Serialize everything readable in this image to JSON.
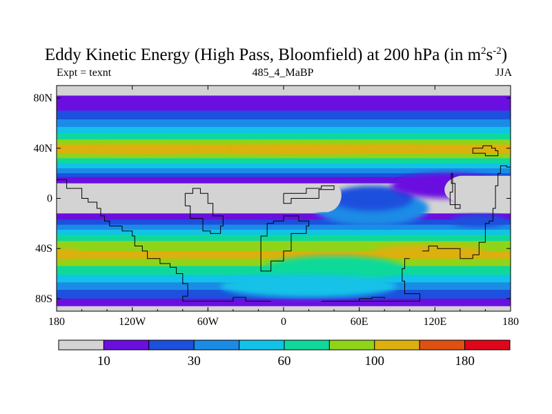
{
  "chart_data": {
    "type": "heatmap",
    "title": "Eddy Kinetic Energy (High Pass, Bloomfield) at 200 hPa (in m",
    "title_units": {
      "unit1": "2",
      "s_label": "s",
      "exp2": "-2",
      "close": ")"
    },
    "center_subtitle": "485_4_MaBP",
    "left_subtitle": "Expt = texnt",
    "right_subtitle": "JJA",
    "x_ticks": [
      {
        "value": -180,
        "label": "180"
      },
      {
        "value": -120,
        "label": "120W"
      },
      {
        "value": -60,
        "label": "60W"
      },
      {
        "value": 0,
        "label": "0"
      },
      {
        "value": 60,
        "label": "60E"
      },
      {
        "value": 120,
        "label": "120E"
      },
      {
        "value": 180,
        "label": "180"
      }
    ],
    "y_ticks": [
      {
        "value": 80,
        "label": "80N"
      },
      {
        "value": 40,
        "label": "40N"
      },
      {
        "value": 0,
        "label": "0"
      },
      {
        "value": -40,
        "label": "40S"
      },
      {
        "value": -80,
        "label": "80S"
      }
    ],
    "xlim": [
      -180,
      180
    ],
    "ylim": [
      -90,
      90
    ],
    "colorbar": {
      "colors": [
        "#d3d3d3",
        "#6a0fe0",
        "#1c50dd",
        "#1a8ce6",
        "#12c2e8",
        "#0fd99a",
        "#90d41a",
        "#dcb00e",
        "#de5112",
        "#e0061a"
      ],
      "labels": [
        {
          "index": 1,
          "text": "10"
        },
        {
          "index": 3,
          "text": "30"
        },
        {
          "index": 5,
          "text": "60"
        },
        {
          "index": 7,
          "text": "100"
        },
        {
          "index": 9,
          "text": "180"
        }
      ]
    },
    "zonal_bands": [
      {
        "lat_top": 90,
        "lat_bottom": 82,
        "level": 0
      },
      {
        "lat_top": 82,
        "lat_bottom": 70,
        "level": 1
      },
      {
        "lat_top": 70,
        "lat_bottom": 63,
        "level": 2
      },
      {
        "lat_top": 63,
        "lat_bottom": 57,
        "level": 3
      },
      {
        "lat_top": 57,
        "lat_bottom": 52,
        "level": 4
      },
      {
        "lat_top": 52,
        "lat_bottom": 47,
        "level": 5
      },
      {
        "lat_top": 47,
        "lat_bottom": 43,
        "level": 6
      },
      {
        "lat_top": 43,
        "lat_bottom": 36,
        "level": 7
      },
      {
        "lat_top": 36,
        "lat_bottom": 32,
        "level": 6
      },
      {
        "lat_top": 32,
        "lat_bottom": 28,
        "level": 5
      },
      {
        "lat_top": 28,
        "lat_bottom": 24,
        "level": 4
      },
      {
        "lat_top": 24,
        "lat_bottom": 20,
        "level": 3
      },
      {
        "lat_top": 20,
        "lat_bottom": 17,
        "level": 2
      },
      {
        "lat_top": 17,
        "lat_bottom": 12,
        "level": 1
      },
      {
        "lat_top": 12,
        "lat_bottom": -12,
        "level": 0
      },
      {
        "lat_top": -12,
        "lat_bottom": -17,
        "level": 1
      },
      {
        "lat_top": -17,
        "lat_bottom": -21,
        "level": 2
      },
      {
        "lat_top": -21,
        "lat_bottom": -25,
        "level": 3
      },
      {
        "lat_top": -25,
        "lat_bottom": -29,
        "level": 4
      },
      {
        "lat_top": -29,
        "lat_bottom": -34,
        "level": 5
      },
      {
        "lat_top": -34,
        "lat_bottom": -42,
        "level": 6
      },
      {
        "lat_top": -42,
        "lat_bottom": -48,
        "level": 7
      },
      {
        "lat_top": -48,
        "lat_bottom": -54,
        "level": 6
      },
      {
        "lat_top": -54,
        "lat_bottom": -61,
        "level": 5
      },
      {
        "lat_top": -61,
        "lat_bottom": -67,
        "level": 4
      },
      {
        "lat_top": -67,
        "lat_bottom": -73,
        "level": 3
      },
      {
        "lat_top": -73,
        "lat_bottom": -80,
        "level": 2
      },
      {
        "lat_top": -80,
        "lat_bottom": -86,
        "level": 1
      },
      {
        "lat_top": -86,
        "lat_bottom": -90,
        "level": 0
      }
    ],
    "regions": [
      {
        "label": "NH storm track max (Pacific)",
        "level": 7,
        "center": [
          -112,
          39
        ],
        "radius": [
          45,
          3.5
        ]
      },
      {
        "label": "NH storm track max (Atlantic)",
        "level": 7,
        "center": [
          10,
          39
        ],
        "radius": [
          55,
          3.5
        ]
      },
      {
        "label": "NH storm track max (Asia)",
        "level": 7,
        "center": [
          85,
          40
        ],
        "radius": [
          25,
          3
        ]
      },
      {
        "label": "SH jet max west",
        "level": 7,
        "center": [
          -172,
          -44
        ],
        "radius": [
          10,
          4
        ]
      },
      {
        "label": "SH jet max Indian Ocean",
        "level": 7,
        "center": [
          115,
          -42
        ],
        "radius": [
          45,
          5
        ]
      },
      {
        "label": "Indian Ocean tongue",
        "level": 3,
        "center": [
          70,
          -8
        ],
        "radius": [
          45,
          14
        ]
      },
      {
        "label": "Indian Ocean core",
        "level": 2,
        "center": [
          70,
          0
        ],
        "radius": [
          33,
          10
        ]
      },
      {
        "label": "Western Pacific tongue",
        "level": 1,
        "center": [
          130,
          10
        ],
        "radius": [
          45,
          10
        ]
      },
      {
        "label": "Mid-latitude reduction",
        "level": 5,
        "center": [
          40,
          -56
        ],
        "radius": [
          55,
          10
        ]
      },
      {
        "label": "Southern cyan region",
        "level": 4,
        "center": [
          20,
          -70
        ],
        "radius": [
          70,
          9
        ]
      },
      {
        "label": "Pacific low band",
        "level": 2,
        "center": [
          155,
          -18
        ],
        "radius": [
          22,
          5
        ]
      }
    ],
    "land_boundaries": [
      {
        "name": "continent-a",
        "points": [
          [
            -180,
            15
          ],
          [
            -172,
            15
          ],
          [
            -172,
            8
          ],
          [
            -160,
            8
          ],
          [
            -160,
            0
          ],
          [
            -155,
            -3
          ],
          [
            -148,
            -8
          ],
          [
            -145,
            -14
          ],
          [
            -142,
            -18
          ],
          [
            -138,
            -22
          ],
          [
            -128,
            -26
          ],
          [
            -120,
            -30
          ],
          [
            -118,
            -38
          ],
          [
            -112,
            -42
          ],
          [
            -108,
            -48
          ],
          [
            -98,
            -52
          ],
          [
            -90,
            -55
          ],
          [
            -85,
            -60
          ],
          [
            -80,
            -68
          ],
          [
            -76,
            -78
          ],
          [
            -80,
            -82
          ],
          [
            -60,
            -82
          ],
          [
            -40,
            -79
          ],
          [
            -30,
            -82
          ],
          [
            -10,
            -82
          ]
        ]
      },
      {
        "name": "continent-b",
        "points": [
          [
            -78,
            -6
          ],
          [
            -74,
            -16
          ],
          [
            -64,
            -26
          ],
          [
            -58,
            -28
          ],
          [
            -50,
            -22
          ],
          [
            -48,
            -14
          ],
          [
            -56,
            -4
          ],
          [
            -60,
            4
          ],
          [
            -66,
            8
          ],
          [
            -72,
            4
          ],
          [
            -78,
            -6
          ]
        ]
      },
      {
        "name": "continent-c",
        "points": [
          [
            -13,
            -20
          ],
          [
            -8,
            -18
          ],
          [
            0,
            -14
          ],
          [
            12,
            -18
          ],
          [
            20,
            -22
          ],
          [
            18,
            -28
          ],
          [
            10,
            -28
          ],
          [
            6,
            -42
          ],
          [
            0,
            -50
          ],
          [
            -10,
            -58
          ],
          [
            -18,
            -50
          ],
          [
            -18,
            -30
          ],
          [
            -13,
            -20
          ]
        ]
      },
      {
        "name": "continent-d",
        "points": [
          [
            0,
            4
          ],
          [
            18,
            8
          ],
          [
            30,
            10
          ],
          [
            40,
            7
          ],
          [
            28,
            0
          ],
          [
            6,
            -4
          ],
          [
            0,
            4
          ]
        ]
      },
      {
        "name": "continent-e",
        "points": [
          [
            110,
            -42
          ],
          [
            115,
            -38
          ],
          [
            122,
            -40
          ],
          [
            130,
            -40
          ],
          [
            140,
            -48
          ],
          [
            150,
            -45
          ],
          [
            155,
            -35
          ],
          [
            160,
            -20
          ],
          [
            163,
            -18
          ],
          [
            166,
            -8
          ],
          [
            168,
            10
          ],
          [
            170,
            20
          ],
          [
            172,
            26
          ],
          [
            177,
            25
          ],
          [
            180,
            18
          ]
        ]
      },
      {
        "name": "continent-f",
        "points": [
          [
            100,
            -48
          ],
          [
            96,
            -56
          ],
          [
            94,
            -66
          ],
          [
            96,
            -76
          ],
          [
            108,
            -78
          ],
          [
            108,
            -82
          ],
          [
            30,
            -82
          ],
          [
            60,
            -80
          ],
          [
            70,
            -79
          ],
          [
            80,
            -80
          ]
        ]
      },
      {
        "name": "continent-g",
        "points": [
          [
            150,
            40
          ],
          [
            158,
            42
          ],
          [
            165,
            40
          ],
          [
            168,
            38
          ],
          [
            170,
            34
          ],
          [
            160,
            36
          ],
          [
            150,
            40
          ]
        ]
      },
      {
        "name": "continent-h",
        "points": [
          [
            133,
            20
          ],
          [
            134,
            5
          ],
          [
            132,
            -5
          ],
          [
            140,
            -8
          ],
          [
            136,
            12
          ],
          [
            133,
            20
          ]
        ]
      }
    ]
  }
}
